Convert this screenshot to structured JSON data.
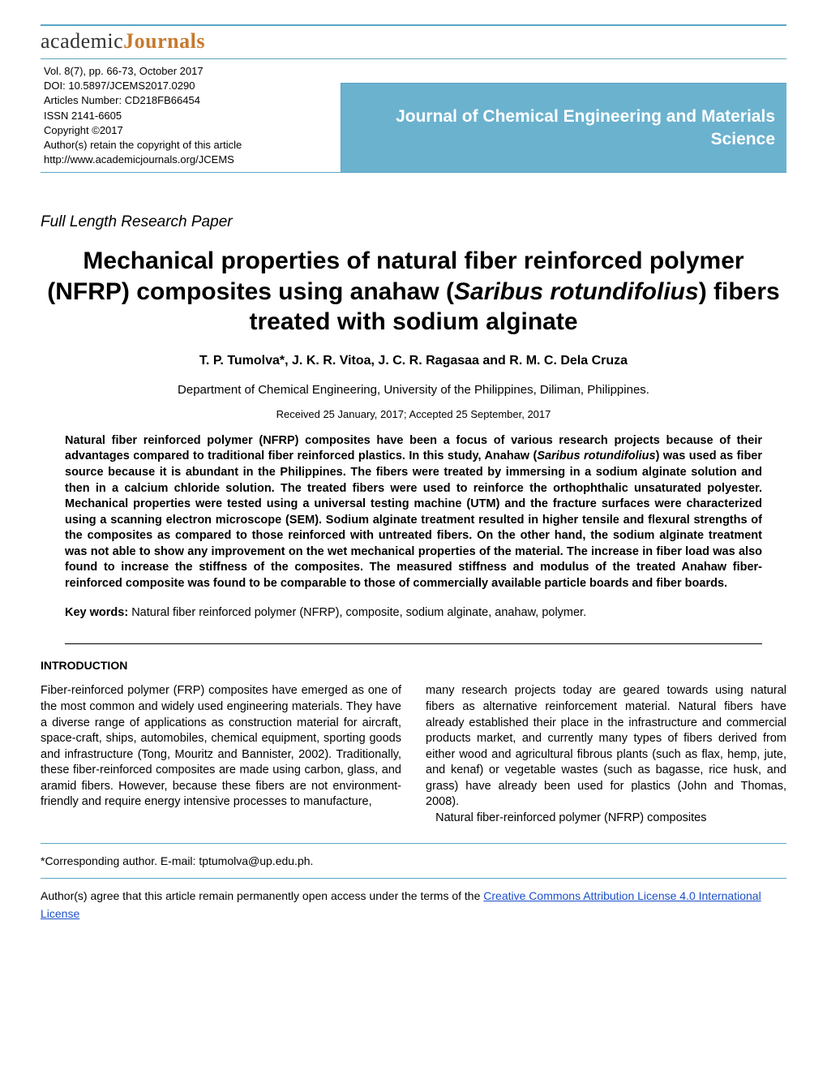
{
  "colors": {
    "header_blue": "#6bb2cf",
    "rule_blue": "#5ba5c4",
    "logo_orange": "#c77a2e",
    "link_blue": "#1a4fc9",
    "text": "#000000",
    "background": "#ffffff"
  },
  "logo": {
    "part1": "academic",
    "part2": "Journals"
  },
  "meta": {
    "vol_line": "Vol. 8(7), pp. 66-73, October 2017",
    "doi_line": "DOI: 10.5897/JCEMS2017.0290",
    "article_number_line": "Articles Number: CD218FB66454",
    "issn_line": "ISSN 2141-6605",
    "copyright_line": "Copyright ©2017",
    "retain_line": "Author(s) retain the copyright of this article",
    "url_line": "http://www.academicjournals.org/JCEMS"
  },
  "journal_name": "Journal of Chemical Engineering and Materials Science",
  "paper_type": "Full Length Research Paper",
  "title": {
    "pre": "Mechanical properties of natural fiber reinforced polymer (NFRP) composites using anahaw (",
    "sci": "Saribus rotundifolius",
    "post": ") fibers treated with sodium alginate"
  },
  "authors": "T. P. Tumolva*, J. K. R. Vitoa, J. C. R. Ragasaa and R. M. C. Dela Cruza",
  "affiliation": "Department of Chemical Engineering, University of the Philippines, Diliman, Philippines.",
  "dates": "Received 25 January, 2017; Accepted 25 September, 2017",
  "abstract": {
    "pre": "Natural fiber reinforced polymer (NFRP) composites have been a focus of various research projects because of their advantages compared to traditional fiber reinforced plastics. In this study, Anahaw (",
    "sci": "Saribus rotundifolius",
    "post": ") was used as fiber source because it is abundant in the Philippines. The fibers were treated by immersing in a sodium alginate solution and then in a calcium chloride solution. The treated fibers were used to reinforce the orthophthalic unsaturated polyester. Mechanical properties were tested using a universal testing machine (UTM) and the fracture surfaces were characterized using a scanning electron microscope (SEM). Sodium alginate treatment resulted in higher tensile and flexural strengths of the composites as compared to those reinforced with untreated fibers. On the other hand, the sodium alginate treatment was not able to show any improvement on the wet mechanical properties of the material. The increase in fiber load was also found to increase the stiffness of the composites. The measured stiffness and modulus of the treated Anahaw fiber-reinforced composite was found to be comparable to those of commercially available particle boards and fiber boards."
  },
  "keywords": {
    "label": "Key words:",
    "text": " Natural fiber reinforced polymer (NFRP), composite, sodium alginate, anahaw, polymer."
  },
  "intro_heading": "INTRODUCTION",
  "body": {
    "col1": "Fiber-reinforced polymer (FRP) composites have emerged as one of the most common and widely used engineering materials. They have a diverse range of applications as construction material for aircraft, space-craft, ships, automobiles, chemical equipment, sporting goods and infrastructure (Tong, Mouritz and Bannister, 2002). Traditionally, these fiber-reinforced composites are made using carbon, glass, and aramid fibers. However, because these fibers are not environment-friendly and require energy intensive processes to manufacture,",
    "col2_p1": "many research projects today are geared towards using natural fibers as alternative reinforcement material. Natural fibers have already established their place in the infrastructure and commercial products market, and currently many types of fibers derived from either wood and agricultural fibrous plants (such as flax, hemp, jute, and kenaf) or vegetable wastes (such as bagasse, rice husk, and grass) have already been used  for  plastics (John and Thomas, 2008).",
    "col2_p2": "Natural fiber-reinforced polymer (NFRP)  composites"
  },
  "footer": {
    "corresponding": "*Corresponding author. E-mail: tptumolva@up.edu.ph.",
    "oa_pre": "Author(s) agree that this article remain permanently open access under the terms of the ",
    "oa_link": "Creative Commons Attribution License 4.0 International License"
  }
}
